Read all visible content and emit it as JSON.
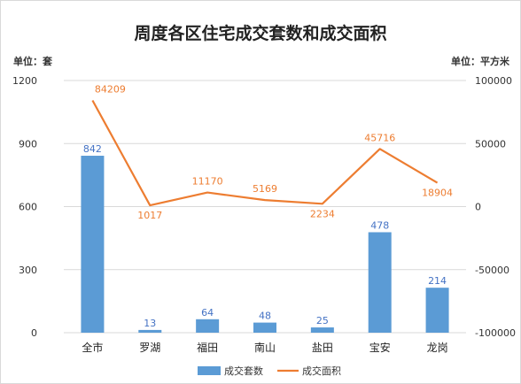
{
  "chart_data": {
    "type": "bar+line",
    "title": "周度各区住宅成交套数和成交面积",
    "ylabel_left": "单位：套",
    "ylabel_right": "单位：平方米",
    "categories": [
      "全市",
      "罗湖",
      "福田",
      "南山",
      "盐田",
      "宝安",
      "龙岗"
    ],
    "ylim_left": [
      0,
      1200
    ],
    "yticks_left": [
      0,
      300,
      600,
      900,
      1200
    ],
    "ylim_right": [
      -100000,
      100000
    ],
    "yticks_right": [
      -100000,
      -50000,
      0,
      50000,
      100000
    ],
    "series": [
      {
        "name": "成交套数",
        "type": "bar",
        "axis": "left",
        "color": "#5b9bd5",
        "values": [
          842,
          13,
          64,
          48,
          25,
          478,
          214
        ]
      },
      {
        "name": "成交面积",
        "type": "line",
        "axis": "right",
        "color": "#ed7d31",
        "values": [
          84209,
          1017,
          11170,
          5169,
          2234,
          45716,
          18904
        ]
      }
    ],
    "grid": true,
    "legend": "bottom"
  }
}
